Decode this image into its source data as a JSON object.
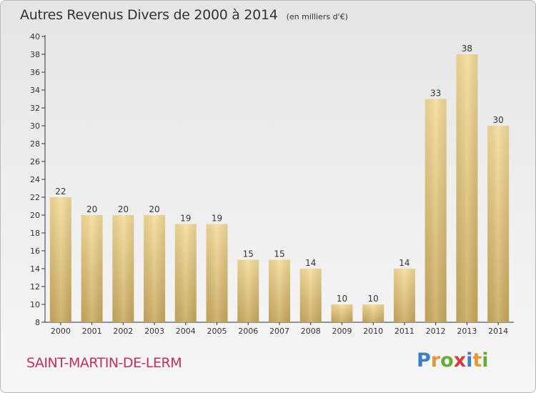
{
  "title": "Autres Revenus Divers de 2000 à 2014",
  "unit_note": "(en milliers d'€)",
  "commune": "SAINT-MARTIN-DE-LERM",
  "logo": {
    "text": "Proxiti",
    "letters": [
      {
        "ch": "P",
        "color": "#3a7fc4"
      },
      {
        "ch": "r",
        "color": "#e7963a"
      },
      {
        "ch": "o",
        "color": "#6aaa3a"
      },
      {
        "ch": "x",
        "color": "#d83c3c"
      },
      {
        "ch": "i",
        "color": "#3a7fc4"
      },
      {
        "ch": "t",
        "color": "#e7963a"
      },
      {
        "ch": "i",
        "color": "#6aaa3a"
      }
    ]
  },
  "colors": {
    "bar_top": "#f5dc9a",
    "bar_bottom": "#c9a95e",
    "axis": "#333333",
    "grid": "#cccccc",
    "text": "#333333"
  },
  "chart_data": {
    "type": "bar",
    "categories": [
      "2000",
      "2001",
      "2002",
      "2003",
      "2004",
      "2005",
      "2006",
      "2007",
      "2008",
      "2009",
      "2010",
      "2011",
      "2012",
      "2013",
      "2014"
    ],
    "values": [
      22,
      20,
      20,
      20,
      19,
      19,
      15,
      15,
      14,
      10,
      10,
      14,
      33,
      38,
      30
    ],
    "ylim": [
      8,
      40
    ],
    "yticks": [
      8,
      10,
      12,
      14,
      16,
      18,
      20,
      22,
      24,
      26,
      28,
      30,
      32,
      34,
      36,
      38,
      40
    ],
    "grid": false
  }
}
